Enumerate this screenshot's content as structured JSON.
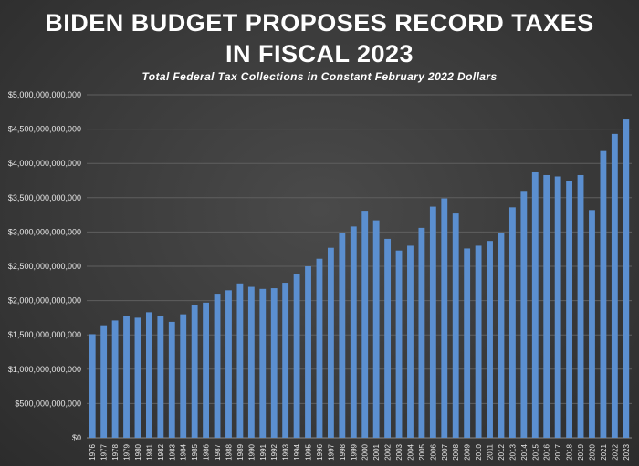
{
  "chart_data": {
    "type": "bar",
    "title_lines": [
      "BIDEN BUDGET PROPOSES RECORD TAXES",
      "IN FISCAL 2023"
    ],
    "subtitle": "Total Federal Tax Collections in Constant February 2022 Dollars",
    "xlabel": "",
    "ylabel": "",
    "ylim": [
      0,
      5000000000000
    ],
    "y_ticks": [
      0,
      500000000000,
      1000000000000,
      1500000000000,
      2000000000000,
      2500000000000,
      3000000000000,
      3500000000000,
      4000000000000,
      4500000000000,
      5000000000000
    ],
    "y_tick_labels": [
      "$0",
      "$500,000,000,000",
      "$1,000,000,000,000",
      "$1,500,000,000,000",
      "$2,000,000,000,000",
      "$2,500,000,000,000",
      "$3,000,000,000,000",
      "$3,500,000,000,000",
      "$4,000,000,000,000",
      "$4,500,000,000,000",
      "$5,000,000,000,000"
    ],
    "grid": true,
    "legend": "none",
    "bar_color": "#5b8fd0",
    "categories": [
      "1976",
      "1977",
      "1978",
      "1979",
      "1980",
      "1981",
      "1982",
      "1983",
      "1984",
      "1985",
      "1986",
      "1987",
      "1988",
      "1989",
      "1990",
      "1991",
      "1992",
      "1993",
      "1994",
      "1995",
      "1996",
      "1997",
      "1998",
      "1999",
      "2000",
      "2001",
      "2002",
      "2003",
      "2004",
      "2005",
      "2006",
      "2007",
      "2008",
      "2009",
      "2010",
      "2011",
      "2012",
      "2013",
      "2014",
      "2015",
      "2016",
      "2017",
      "2018",
      "2019",
      "2020",
      "2021",
      "2022",
      "2023"
    ],
    "values": [
      1510000000000,
      1640000000000,
      1710000000000,
      1770000000000,
      1750000000000,
      1830000000000,
      1780000000000,
      1690000000000,
      1800000000000,
      1930000000000,
      1970000000000,
      2100000000000,
      2150000000000,
      2250000000000,
      2200000000000,
      2170000000000,
      2180000000000,
      2260000000000,
      2390000000000,
      2500000000000,
      2610000000000,
      2770000000000,
      2990000000000,
      3080000000000,
      3310000000000,
      3170000000000,
      2900000000000,
      2730000000000,
      2800000000000,
      3060000000000,
      3370000000000,
      3490000000000,
      3270000000000,
      2760000000000,
      2800000000000,
      2870000000000,
      2990000000000,
      3360000000000,
      3600000000000,
      3870000000000,
      3830000000000,
      3810000000000,
      3740000000000,
      3830000000000,
      3320000000000,
      4180000000000,
      4430000000000,
      4640000000000
    ]
  }
}
